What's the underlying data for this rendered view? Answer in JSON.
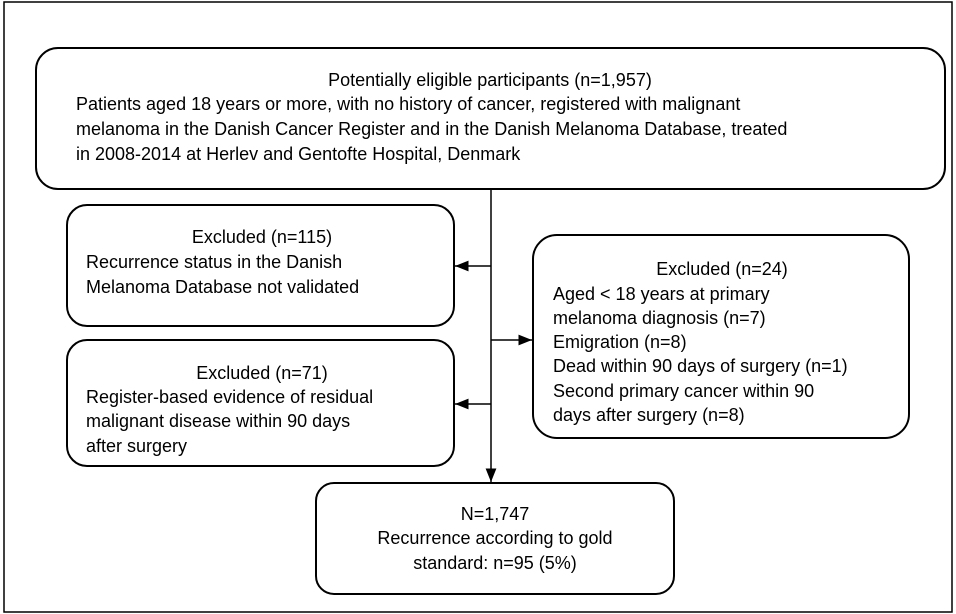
{
  "nodes": [
    {
      "title": "Potentially eligible participants (n=1,957)",
      "lines": [
        "Patients aged 18 years or more, with no history of cancer, registered with malignant",
        "melanoma in the Danish Cancer Register and in the Danish Melanoma Database, treated",
        "in 2008-2014 at Herlev and Gentofte Hospital, Denmark"
      ]
    },
    {
      "title": "Excluded (n=115)",
      "lines": [
        "Recurrence status in the Danish",
        "Melanoma Database not validated"
      ]
    },
    {
      "title": "Excluded (n=71)",
      "lines": [
        "Register-based evidence of residual",
        "malignant disease within 90 days",
        "after surgery"
      ]
    },
    {
      "title": "Excluded (n=24)",
      "lines": [
        "Aged < 18 years at primary",
        "melanoma diagnosis (n=7)",
        "Emigration (n=8)",
        "Dead within 90 days of surgery (n=1)",
        "Second primary cancer within 90",
        "days after surgery (n=8)"
      ]
    },
    {
      "title": "N=1,747",
      "lines": [
        "Recurrence according to gold",
        "standard: n=95 (5%)"
      ]
    }
  ]
}
